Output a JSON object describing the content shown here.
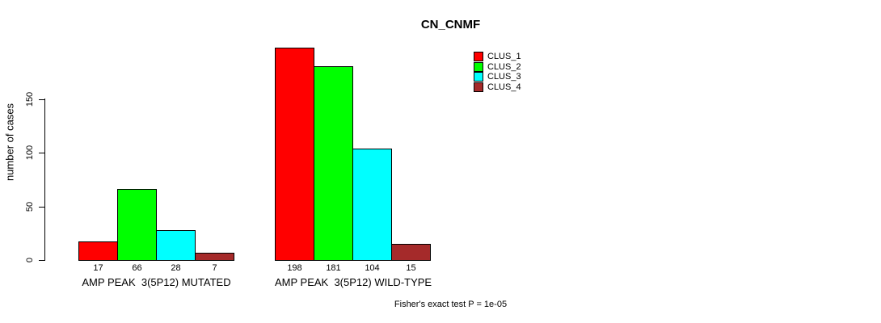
{
  "chart_data": {
    "type": "bar",
    "title": "CN_CNMF",
    "categories": [
      "AMP PEAK  3(5P12) MUTATED",
      "AMP PEAK  3(5P12) WILD-TYPE"
    ],
    "series": [
      {
        "name": "CLUS_1",
        "color": "#ff0000",
        "values": [
          17,
          198
        ]
      },
      {
        "name": "CLUS_2",
        "color": "#00ff00",
        "values": [
          66,
          181
        ]
      },
      {
        "name": "CLUS_3",
        "color": "#00ffff",
        "values": [
          28,
          104
        ]
      },
      {
        "name": "CLUS_4",
        "color": "#a52a2a",
        "values": [
          7,
          15
        ]
      }
    ],
    "ylabel": "number of cases",
    "xlabel": "",
    "yticks": [
      0,
      50,
      100,
      150
    ],
    "ylim": [
      0,
      200
    ],
    "bar_value_labels": true,
    "grid": false,
    "legend_position": "top-right",
    "annotation": "Fisher's exact test P = 1e-05"
  }
}
